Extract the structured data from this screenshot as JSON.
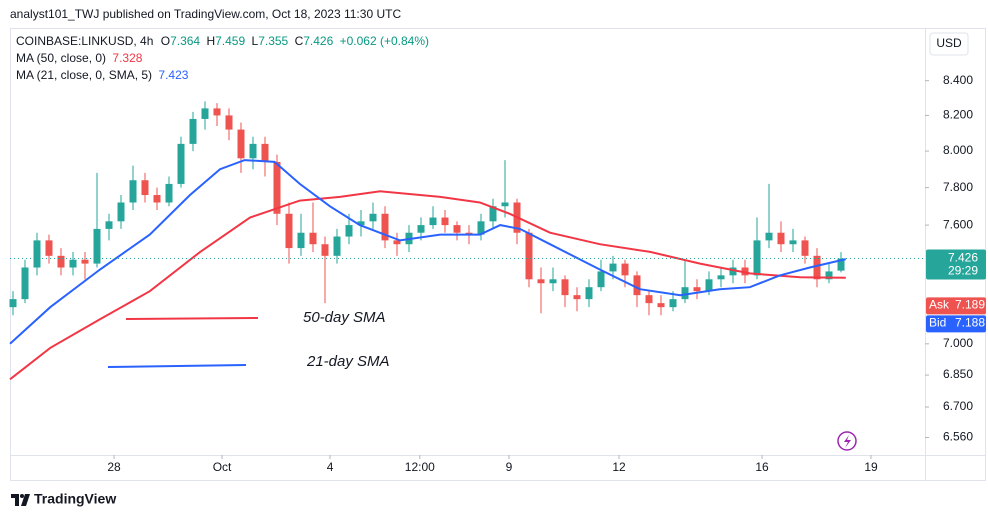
{
  "header": {
    "publisher": "analyst101_TWJ published on TradingView.com, Oct 18, 2023 11:30 UTC"
  },
  "footer": {
    "brand": "TradingView"
  },
  "chart_data": {
    "type": "candlestick",
    "symbol": "COINBASE:LINKUSD, 4h",
    "ohlc_labels": [
      "O",
      "H",
      "L",
      "C"
    ],
    "ohlc": [
      7.364,
      7.459,
      7.355,
      7.426
    ],
    "change": "+0.062 (+0.84%)",
    "currency": "USD",
    "log": true,
    "up_color": "#26a69a",
    "down_color": "#ef5350",
    "ylim": [
      6.49,
      8.7
    ],
    "yticks": [
      {
        "value": 8.4,
        "label": "8.400"
      },
      {
        "value": 8.2,
        "label": "8.200"
      },
      {
        "value": 8.0,
        "label": "8.000"
      },
      {
        "value": 7.8,
        "label": "7.800"
      },
      {
        "value": 7.6,
        "label": "7.600"
      },
      {
        "value": 7.0,
        "label": "7.000"
      },
      {
        "value": 6.85,
        "label": "6.850"
      },
      {
        "value": 6.7,
        "label": "6.700"
      },
      {
        "value": 6.56,
        "label": "6.560"
      }
    ],
    "xlim": [
      -0.25,
      76
    ],
    "xticks": [
      {
        "value": 8.42,
        "label": "28"
      },
      {
        "value": 17.42,
        "label": "Oct"
      },
      {
        "value": 26.42,
        "label": "4"
      },
      {
        "value": 33.9,
        "label": "12:00"
      },
      {
        "value": 41.33,
        "label": "9"
      },
      {
        "value": 50.5,
        "label": "12"
      },
      {
        "value": 62.42,
        "label": "16"
      },
      {
        "value": 71.5,
        "label": "19"
      }
    ],
    "candles": [
      [
        7.18,
        7.26,
        7.14,
        7.22
      ],
      [
        7.22,
        7.42,
        7.2,
        7.38
      ],
      [
        7.38,
        7.56,
        7.34,
        7.52
      ],
      [
        7.52,
        7.55,
        7.4,
        7.44
      ],
      [
        7.44,
        7.48,
        7.34,
        7.38
      ],
      [
        7.38,
        7.46,
        7.34,
        7.42
      ],
      [
        7.42,
        7.46,
        7.32,
        7.4
      ],
      [
        7.4,
        7.88,
        7.38,
        7.58
      ],
      [
        7.58,
        7.66,
        7.52,
        7.62
      ],
      [
        7.62,
        7.76,
        7.58,
        7.72
      ],
      [
        7.72,
        7.92,
        7.68,
        7.84
      ],
      [
        7.84,
        7.88,
        7.72,
        7.76
      ],
      [
        7.76,
        7.8,
        7.68,
        7.72
      ],
      [
        7.72,
        7.86,
        7.7,
        7.82
      ],
      [
        7.82,
        8.08,
        7.8,
        8.04
      ],
      [
        8.04,
        8.22,
        8.0,
        8.18
      ],
      [
        8.18,
        8.28,
        8.12,
        8.24
      ],
      [
        8.24,
        8.27,
        8.14,
        8.2
      ],
      [
        8.2,
        8.24,
        8.06,
        8.12
      ],
      [
        8.12,
        8.16,
        7.88,
        7.96
      ],
      [
        7.96,
        8.08,
        7.9,
        8.04
      ],
      [
        8.04,
        8.08,
        7.86,
        7.94
      ],
      [
        7.94,
        7.98,
        7.6,
        7.66
      ],
      [
        7.66,
        7.72,
        7.4,
        7.48
      ],
      [
        7.48,
        7.66,
        7.44,
        7.56
      ],
      [
        7.56,
        7.72,
        7.46,
        7.5
      ],
      [
        7.5,
        7.54,
        7.2,
        7.44
      ],
      [
        7.44,
        7.58,
        7.4,
        7.54
      ],
      [
        7.54,
        7.66,
        7.5,
        7.6
      ],
      [
        7.6,
        7.68,
        7.54,
        7.62
      ],
      [
        7.62,
        7.72,
        7.58,
        7.66
      ],
      [
        7.66,
        7.7,
        7.48,
        7.52
      ],
      [
        7.52,
        7.56,
        7.44,
        7.5
      ],
      [
        7.5,
        7.6,
        7.46,
        7.56
      ],
      [
        7.56,
        7.64,
        7.52,
        7.6
      ],
      [
        7.6,
        7.7,
        7.58,
        7.64
      ],
      [
        7.64,
        7.68,
        7.56,
        7.6
      ],
      [
        7.6,
        7.62,
        7.52,
        7.56
      ],
      [
        7.56,
        7.6,
        7.5,
        7.55
      ],
      [
        7.55,
        7.66,
        7.52,
        7.62
      ],
      [
        7.62,
        7.74,
        7.58,
        7.7
      ],
      [
        7.7,
        7.95,
        7.64,
        7.72
      ],
      [
        7.72,
        7.74,
        7.5,
        7.56
      ],
      [
        7.56,
        7.58,
        7.28,
        7.32
      ],
      [
        7.32,
        7.38,
        7.15,
        7.3
      ],
      [
        7.3,
        7.38,
        7.26,
        7.32
      ],
      [
        7.32,
        7.34,
        7.18,
        7.24
      ],
      [
        7.24,
        7.28,
        7.16,
        7.22
      ],
      [
        7.22,
        7.32,
        7.18,
        7.28
      ],
      [
        7.28,
        7.42,
        7.26,
        7.36
      ],
      [
        7.36,
        7.44,
        7.32,
        7.4
      ],
      [
        7.4,
        7.42,
        7.28,
        7.34
      ],
      [
        7.34,
        7.36,
        7.18,
        7.24
      ],
      [
        7.24,
        7.26,
        7.14,
        7.2
      ],
      [
        7.2,
        7.24,
        7.14,
        7.18
      ],
      [
        7.18,
        7.26,
        7.16,
        7.22
      ],
      [
        7.22,
        7.42,
        7.2,
        7.28
      ],
      [
        7.28,
        7.32,
        7.22,
        7.26
      ],
      [
        7.26,
        7.36,
        7.24,
        7.32
      ],
      [
        7.32,
        7.38,
        7.28,
        7.34
      ],
      [
        7.34,
        7.42,
        7.3,
        7.38
      ],
      [
        7.38,
        7.42,
        7.3,
        7.34
      ],
      [
        7.34,
        7.64,
        7.32,
        7.52
      ],
      [
        7.52,
        7.82,
        7.48,
        7.56
      ],
      [
        7.56,
        7.62,
        7.46,
        7.5
      ],
      [
        7.5,
        7.58,
        7.46,
        7.52
      ],
      [
        7.52,
        7.54,
        7.4,
        7.44
      ],
      [
        7.44,
        7.48,
        7.28,
        7.32
      ],
      [
        7.32,
        7.4,
        7.3,
        7.36
      ],
      [
        7.364,
        7.459,
        7.355,
        7.426
      ]
    ],
    "series": [
      {
        "name": "MA (50, close, 0)",
        "color": "#f23645",
        "legend_value": 7.328,
        "x": [
          -0.25,
          3.1,
          7.25,
          11.4,
          15.6,
          19.75,
          23.9,
          27.25,
          30.6,
          35.6,
          38.9,
          41.4,
          44.75,
          48.9,
          53.1,
          57.25,
          61.4,
          65.6,
          69.4
        ],
        "values": [
          6.83,
          6.98,
          7.12,
          7.26,
          7.46,
          7.64,
          7.73,
          7.75,
          7.78,
          7.75,
          7.72,
          7.66,
          7.56,
          7.5,
          7.46,
          7.4,
          7.35,
          7.33,
          7.328
        ]
      },
      {
        "name": "MA (21, close, 0, SMA, 5)",
        "color": "#2962ff",
        "legend_value": 7.423,
        "x": [
          -0.25,
          3.1,
          7.25,
          11.4,
          14.75,
          17.25,
          19.3,
          21.8,
          23.9,
          26.4,
          28.9,
          32.25,
          35.6,
          38.9,
          40.6,
          42.25,
          44.75,
          48.9,
          52.25,
          55.6,
          58.9,
          61.4,
          63.9,
          66.4,
          69.4
        ],
        "values": [
          7.0,
          7.18,
          7.37,
          7.55,
          7.76,
          7.9,
          7.95,
          7.94,
          7.82,
          7.7,
          7.6,
          7.52,
          7.55,
          7.55,
          7.6,
          7.58,
          7.5,
          7.37,
          7.27,
          7.24,
          7.27,
          7.28,
          7.34,
          7.38,
          7.423
        ]
      }
    ],
    "last_price": 7.426,
    "countdown": "29:29",
    "ask_label": "Ask",
    "ask": 7.189,
    "bid_label": "Bid",
    "bid": 7.188,
    "annotations": [
      {
        "text": "50-day SMA",
        "color": "#f23645"
      },
      {
        "text": "21-day SMA",
        "color": "#2962ff"
      }
    ]
  }
}
